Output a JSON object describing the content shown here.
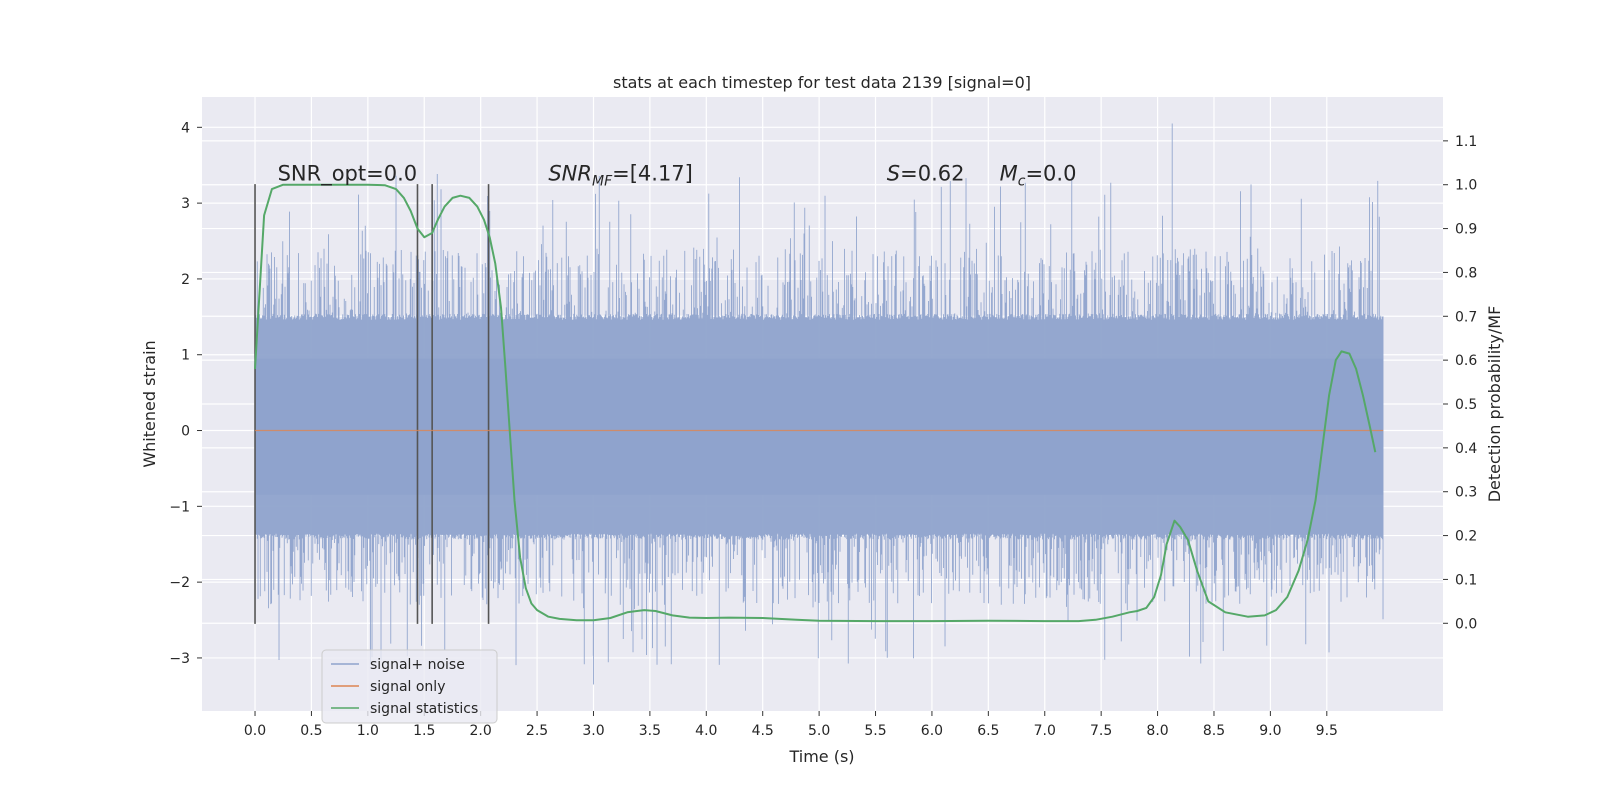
{
  "chart_data": {
    "type": "line",
    "title": "stats at each timestep for test data 2139 [signal=0]",
    "xlabel": "Time (s)",
    "ylabel": "Whitened strain",
    "y2label": "Detection probability/MF",
    "xlim": [
      -0.47,
      10.53
    ],
    "ylim": [
      -3.7,
      4.4
    ],
    "y2lim": [
      -0.2,
      1.2
    ],
    "x_ticks": [
      0.0,
      0.5,
      1.0,
      1.5,
      2.0,
      2.5,
      3.0,
      3.5,
      4.0,
      4.5,
      5.0,
      5.5,
      6.0,
      6.5,
      7.0,
      7.5,
      8.0,
      8.5,
      9.0,
      9.5
    ],
    "x_tick_labels": [
      "0.0",
      "0.5",
      "1.0",
      "1.5",
      "2.0",
      "2.5",
      "3.0",
      "3.5",
      "4.0",
      "4.5",
      "5.0",
      "5.5",
      "6.0",
      "6.5",
      "7.0",
      "7.5",
      "8.0",
      "8.5",
      "9.0",
      "9.5"
    ],
    "y_ticks": [
      -3,
      -2,
      -1,
      0,
      1,
      2,
      3,
      4
    ],
    "y_tick_labels": [
      "−3",
      "−2",
      "−1",
      "0",
      "1",
      "2",
      "3",
      "4"
    ],
    "y2_ticks": [
      0.0,
      0.1,
      0.2,
      0.3,
      0.4,
      0.5,
      0.6,
      0.7,
      0.8,
      0.9,
      1.0,
      1.1
    ],
    "y2_tick_labels": [
      "0.0",
      "0.1",
      "0.2",
      "0.3",
      "0.4",
      "0.5",
      "0.6",
      "0.7",
      "0.8",
      "0.9",
      "1.0",
      "1.1"
    ],
    "grid": true,
    "legend_position": "lower-left",
    "vertical_markers": [
      {
        "x": 0.0,
        "ymin": -2.55,
        "ymax": 3.25,
        "color": "#555555"
      },
      {
        "x": 1.44,
        "ymin": -2.55,
        "ymax": 3.25,
        "color": "#555555"
      },
      {
        "x": 1.57,
        "ymin": -2.55,
        "ymax": 3.25,
        "color": "#555555"
      },
      {
        "x": 2.07,
        "ymin": -2.55,
        "ymax": 3.25,
        "color": "#555555"
      }
    ],
    "annotations": [
      {
        "x": 0.2,
        "y": 3.3,
        "text": "SNR_opt=0.0"
      },
      {
        "x": 2.6,
        "y": 3.3,
        "text": "SNR_MF=[4.17]"
      },
      {
        "x": 5.6,
        "y": 3.3,
        "text": "S=0.62"
      },
      {
        "x": 6.6,
        "y": 3.3,
        "text": "M_c=0.0"
      }
    ],
    "series": [
      {
        "name": "signal+ noise",
        "axis": "left",
        "color": "#8fa3cc",
        "style": "dense-noise",
        "x_range": [
          0.0,
          10.0
        ],
        "envelope_upper": 1.5,
        "envelope_lower": -1.4,
        "body_upper": 0.95,
        "body_lower": -0.85,
        "max_value": 4.05,
        "max_at": 8.13,
        "min_value": -3.35
      },
      {
        "name": "signal only",
        "axis": "left",
        "color": "#dd8452",
        "x": [
          0.0,
          10.0
        ],
        "y": [
          0.0,
          0.0
        ]
      },
      {
        "name": "signal statistics",
        "axis": "right",
        "color": "#55a868",
        "x": [
          0.0,
          0.08,
          0.15,
          0.25,
          0.4,
          0.6,
          0.8,
          1.0,
          1.15,
          1.25,
          1.32,
          1.38,
          1.44,
          1.5,
          1.57,
          1.62,
          1.68,
          1.75,
          1.82,
          1.9,
          1.97,
          2.03,
          2.08,
          2.13,
          2.18,
          2.22,
          2.26,
          2.3,
          2.35,
          2.4,
          2.45,
          2.5,
          2.6,
          2.7,
          2.85,
          3.0,
          3.15,
          3.3,
          3.45,
          3.55,
          3.7,
          3.85,
          4.0,
          4.2,
          4.5,
          4.8,
          5.0,
          5.5,
          6.0,
          6.5,
          7.0,
          7.3,
          7.45,
          7.6,
          7.75,
          7.82,
          7.9,
          7.97,
          8.03,
          8.08,
          8.15,
          8.2,
          8.27,
          8.35,
          8.45,
          8.6,
          8.8,
          8.95,
          9.05,
          9.15,
          9.25,
          9.33,
          9.4,
          9.46,
          9.52,
          9.58,
          9.63,
          9.7,
          9.76,
          9.82,
          9.88,
          9.93
        ],
        "y": [
          0.58,
          0.93,
          0.99,
          1.0,
          1.0,
          1.0,
          1.0,
          1.0,
          0.999,
          0.99,
          0.97,
          0.94,
          0.9,
          0.88,
          0.89,
          0.92,
          0.95,
          0.97,
          0.975,
          0.97,
          0.95,
          0.92,
          0.88,
          0.82,
          0.72,
          0.58,
          0.43,
          0.28,
          0.15,
          0.08,
          0.045,
          0.03,
          0.015,
          0.01,
          0.007,
          0.007,
          0.012,
          0.025,
          0.03,
          0.028,
          0.018,
          0.013,
          0.012,
          0.013,
          0.012,
          0.008,
          0.006,
          0.005,
          0.005,
          0.006,
          0.005,
          0.005,
          0.008,
          0.015,
          0.025,
          0.028,
          0.035,
          0.06,
          0.11,
          0.18,
          0.234,
          0.22,
          0.19,
          0.12,
          0.05,
          0.025,
          0.015,
          0.018,
          0.03,
          0.06,
          0.12,
          0.19,
          0.28,
          0.4,
          0.52,
          0.6,
          0.62,
          0.615,
          0.58,
          0.52,
          0.45,
          0.39
        ]
      }
    ]
  }
}
